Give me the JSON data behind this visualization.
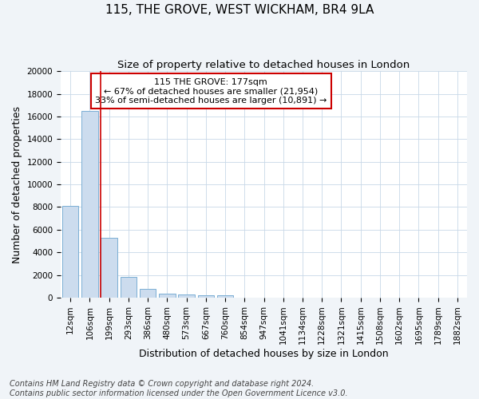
{
  "title": "115, THE GROVE, WEST WICKHAM, BR4 9LA",
  "subtitle": "Size of property relative to detached houses in London",
  "xlabel": "Distribution of detached houses by size in London",
  "ylabel": "Number of detached properties",
  "footer_line1": "Contains HM Land Registry data © Crown copyright and database right 2024.",
  "footer_line2": "Contains public sector information licensed under the Open Government Licence v3.0.",
  "categories": [
    "12sqm",
    "106sqm",
    "199sqm",
    "293sqm",
    "386sqm",
    "480sqm",
    "573sqm",
    "667sqm",
    "760sqm",
    "854sqm",
    "947sqm",
    "1041sqm",
    "1134sqm",
    "1228sqm",
    "1321sqm",
    "1415sqm",
    "1508sqm",
    "1602sqm",
    "1695sqm",
    "1789sqm",
    "1882sqm"
  ],
  "values": [
    8100,
    16500,
    5300,
    1850,
    750,
    350,
    280,
    200,
    200,
    0,
    0,
    0,
    0,
    0,
    0,
    0,
    0,
    0,
    0,
    0,
    0
  ],
  "bar_color": "#ccdcee",
  "bar_edge_color": "#7bafd4",
  "vline_x": 2,
  "vline_color": "#cc0000",
  "annotation_text": "115 THE GROVE: 177sqm\n← 67% of detached houses are smaller (21,954)\n33% of semi-detached houses are larger (10,891) →",
  "annotation_box_color": "#cc0000",
  "ylim": [
    0,
    20000
  ],
  "yticks": [
    0,
    2000,
    4000,
    6000,
    8000,
    10000,
    12000,
    14000,
    16000,
    18000,
    20000
  ],
  "background_color": "#f0f4f8",
  "plot_background_color": "#ffffff",
  "grid_color": "#c8d8e8",
  "title_fontsize": 11,
  "subtitle_fontsize": 9.5,
  "axis_label_fontsize": 9,
  "tick_fontsize": 7.5,
  "annotation_fontsize": 8,
  "footer_fontsize": 7
}
